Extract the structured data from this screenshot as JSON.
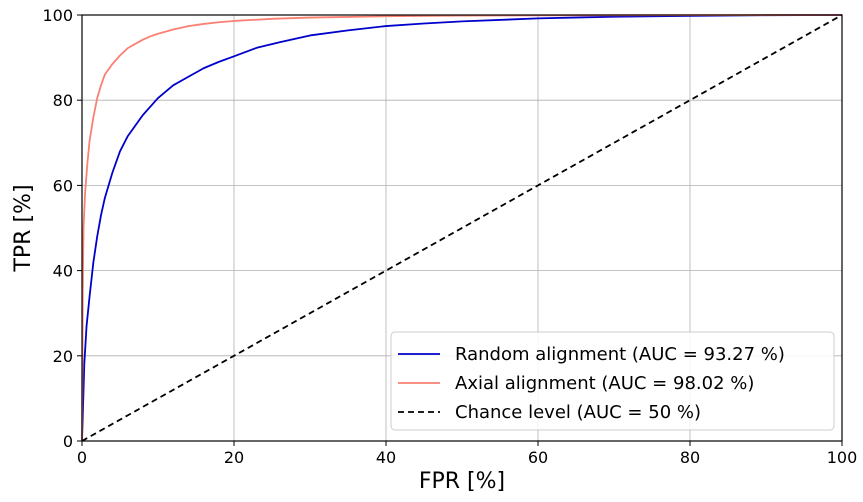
{
  "chart_data": {
    "type": "line",
    "title": "",
    "xlabel": "FPR [%]",
    "ylabel": "TPR [%]",
    "xlim": [
      0,
      100
    ],
    "ylim": [
      0,
      100
    ],
    "x_ticks": [
      "0",
      "20",
      "40",
      "60",
      "80",
      "100"
    ],
    "y_ticks": [
      "0",
      "20",
      "40",
      "60",
      "80",
      "100"
    ],
    "grid": true,
    "legend_position": "bottom-right",
    "series": [
      {
        "name": "Random alignment (AUC = 93.27 %)",
        "color": "#0000cc",
        "style": "solid",
        "x": [
          0,
          0.1,
          0.3,
          0.6,
          1,
          1.5,
          2,
          2.5,
          3,
          4,
          5,
          6,
          7,
          8,
          10,
          12,
          14,
          16,
          18,
          20,
          23,
          26,
          30,
          35,
          40,
          45,
          50,
          60,
          70,
          80,
          90,
          100
        ],
        "y": [
          0,
          6,
          18,
          27,
          34,
          42,
          48,
          53,
          57,
          63,
          68,
          71.5,
          74,
          76.5,
          80.5,
          83.5,
          85.5,
          87.5,
          89,
          90.3,
          92.3,
          93.6,
          95.2,
          96.4,
          97.4,
          98,
          98.5,
          99.2,
          99.6,
          99.8,
          99.95,
          100
        ]
      },
      {
        "name": "Axial alignment (AUC = 98.02 %)",
        "color": "#fa8072",
        "style": "solid",
        "x": [
          0,
          0.1,
          0.2,
          0.4,
          0.7,
          1,
          1.5,
          2,
          2.5,
          3,
          4,
          5,
          6,
          7,
          8,
          9,
          10,
          12,
          14,
          16,
          18,
          20,
          25,
          30,
          40,
          50,
          60,
          80,
          100
        ],
        "y": [
          0,
          35,
          50,
          58,
          65,
          70.5,
          76,
          80.5,
          83.5,
          86,
          88.5,
          90.5,
          92.2,
          93.2,
          94.2,
          95,
          95.6,
          96.6,
          97.4,
          97.9,
          98.3,
          98.6,
          99.1,
          99.4,
          99.7,
          99.85,
          99.92,
          99.98,
          100
        ]
      },
      {
        "name": "Chance level (AUC = 50 %)",
        "color": "#000000",
        "style": "dashed",
        "x": [
          0,
          100
        ],
        "y": [
          0,
          100
        ]
      }
    ]
  }
}
